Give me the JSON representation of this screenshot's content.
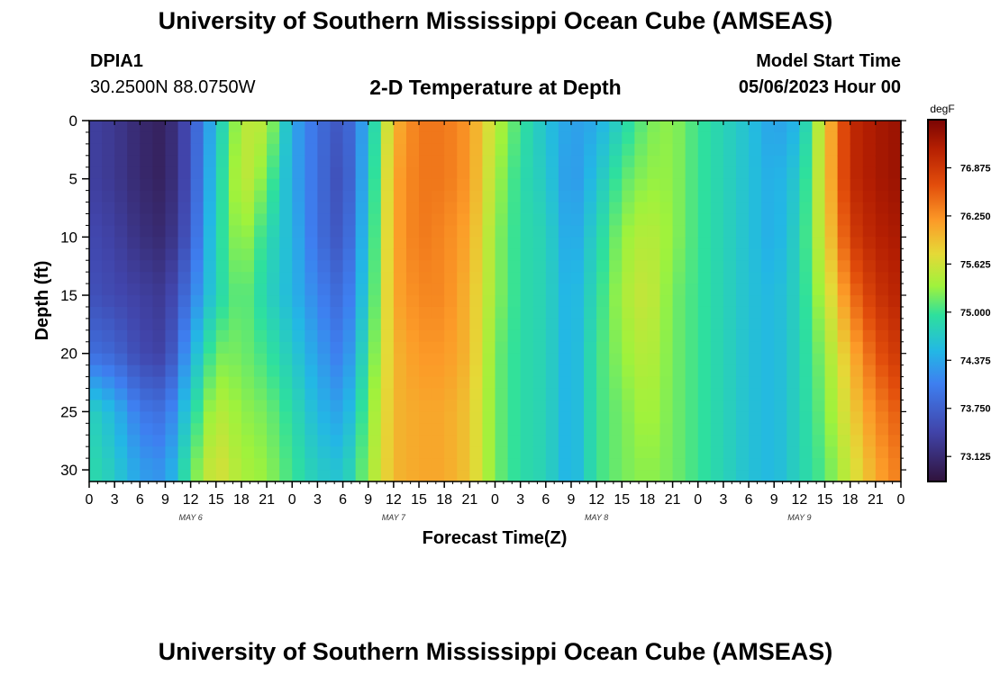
{
  "header": {
    "title": "University of Southern Mississippi Ocean Cube (AMSEAS)",
    "station": "DPIA1",
    "coords": "30.2500N  88.0750W",
    "subtitle": "2-D Temperature at Depth",
    "model_start_label": "Model Start Time",
    "model_start_value": "05/06/2023 Hour 00"
  },
  "footer": {
    "title": "University of Southern Mississippi Ocean Cube (AMSEAS)"
  },
  "chart_data": {
    "type": "heatmap",
    "title": "2-D Temperature at Depth",
    "xlabel": "Forecast Time(Z)",
    "ylabel": "Depth (ft)",
    "x_ticks": [
      "0",
      "3",
      "6",
      "9",
      "12",
      "15",
      "18",
      "21",
      "0",
      "3",
      "6",
      "9",
      "12",
      "15",
      "18",
      "21",
      "0",
      "3",
      "6",
      "9",
      "12",
      "15",
      "18",
      "21",
      "0",
      "3",
      "6",
      "9",
      "12",
      "15",
      "18",
      "21",
      "0"
    ],
    "day_labels": [
      "MAY 6",
      "MAY 7",
      "MAY 8",
      "MAY 9"
    ],
    "xlim_hours": [
      0,
      96
    ],
    "y_ticks": [
      0,
      5,
      10,
      15,
      20,
      25,
      30
    ],
    "ylim": [
      0,
      31
    ],
    "y_inverted": true,
    "colorbar": {
      "unit": "degF",
      "ticks": [
        "76.875",
        "76.250",
        "75.625",
        "75.000",
        "74.375",
        "73.750",
        "73.125"
      ],
      "range": [
        72.8,
        77.5
      ]
    },
    "depths_ft": [
      0,
      5,
      10,
      15,
      20,
      25,
      30
    ],
    "hours": [
      0,
      3,
      6,
      9,
      12,
      15,
      18,
      21,
      24,
      27,
      30,
      33,
      36,
      39,
      42,
      45,
      48,
      51,
      54,
      57,
      60,
      63,
      66,
      69,
      72,
      75,
      78,
      81,
      84,
      87,
      90,
      93,
      96
    ],
    "temperature_degF": [
      [
        73.4,
        73.3,
        73.1,
        73.0,
        73.6,
        74.6,
        75.5,
        75.5,
        74.4,
        73.9,
        73.6,
        74.5,
        76.0,
        76.4,
        76.4,
        76.2,
        75.5,
        75.0,
        74.6,
        74.3,
        74.4,
        74.8,
        75.2,
        75.3,
        75.0,
        74.8,
        74.6,
        74.3,
        74.5,
        75.8,
        77.0,
        77.2,
        77.3
      ],
      [
        73.4,
        73.3,
        73.1,
        73.0,
        73.6,
        74.7,
        75.6,
        75.2,
        74.4,
        73.9,
        73.5,
        74.6,
        76.1,
        76.4,
        76.4,
        76.2,
        75.4,
        74.9,
        74.7,
        74.2,
        74.6,
        75.1,
        75.3,
        75.3,
        75.0,
        74.8,
        74.6,
        74.4,
        74.7,
        75.8,
        77.0,
        77.2,
        77.3
      ],
      [
        73.5,
        73.4,
        73.2,
        73.1,
        73.7,
        74.8,
        75.4,
        74.9,
        74.5,
        73.9,
        73.6,
        74.7,
        76.1,
        76.4,
        76.3,
        76.1,
        75.3,
        74.9,
        74.8,
        74.3,
        74.8,
        75.3,
        75.5,
        75.3,
        75.0,
        74.8,
        74.6,
        74.4,
        74.8,
        75.7,
        76.8,
        77.1,
        77.2
      ],
      [
        73.6,
        73.5,
        73.4,
        73.3,
        74.0,
        74.8,
        75.2,
        74.8,
        74.5,
        74.1,
        73.8,
        74.8,
        76.1,
        76.3,
        76.3,
        76.0,
        75.3,
        74.9,
        74.8,
        74.4,
        74.9,
        75.4,
        75.6,
        75.2,
        75.0,
        74.8,
        74.6,
        74.5,
        74.8,
        75.5,
        76.4,
        76.9,
        77.1
      ],
      [
        73.9,
        73.8,
        73.5,
        73.4,
        74.4,
        75.2,
        75.2,
        75.0,
        74.7,
        74.3,
        74.0,
        75.0,
        76.0,
        76.2,
        76.2,
        76.0,
        75.2,
        74.9,
        74.8,
        74.4,
        75.0,
        75.3,
        75.5,
        75.2,
        75.0,
        74.8,
        74.6,
        74.5,
        74.8,
        75.3,
        76.0,
        76.6,
        76.9
      ],
      [
        74.8,
        74.5,
        74.0,
        73.9,
        74.8,
        75.5,
        75.3,
        75.2,
        74.9,
        74.5,
        74.3,
        75.2,
        76.0,
        76.1,
        76.1,
        75.9,
        75.2,
        74.9,
        74.8,
        74.4,
        75.0,
        75.2,
        75.4,
        75.2,
        75.0,
        74.8,
        74.6,
        74.5,
        74.8,
        75.2,
        75.8,
        76.3,
        76.6
      ],
      [
        74.9,
        74.7,
        74.3,
        74.2,
        75.1,
        75.7,
        75.4,
        75.3,
        75.0,
        74.7,
        74.6,
        75.3,
        76.0,
        76.1,
        76.1,
        75.9,
        75.2,
        74.9,
        74.8,
        74.4,
        75.0,
        75.2,
        75.3,
        75.2,
        75.0,
        74.8,
        74.6,
        74.5,
        74.8,
        75.1,
        75.6,
        76.1,
        76.4
      ]
    ]
  }
}
